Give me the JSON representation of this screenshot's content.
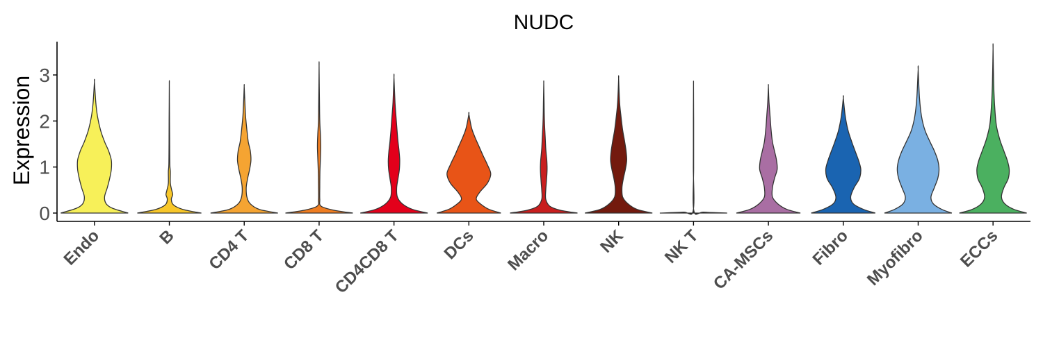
{
  "chart_data": {
    "type": "violin",
    "title": "NUDC",
    "xlabel": "",
    "ylabel": "Expression",
    "ylim": [
      -0.2,
      3.6
    ],
    "yticks": [
      0,
      1,
      2,
      3
    ],
    "grid": false,
    "legend": "none",
    "categories": [
      "Endo",
      "B",
      "CD4 T",
      "CD8 T",
      "CD4CD8 T",
      "DCs",
      "Macro",
      "NK",
      "NK T",
      "CA-MSCs",
      "Fibro",
      "Myofibro",
      "ECCs"
    ],
    "series": [
      {
        "color": "#f7f059",
        "max": 2.85,
        "width": [
          [
            0,
            1.0
          ],
          [
            0.1,
            0.55
          ],
          [
            0.2,
            0.35
          ],
          [
            0.35,
            0.3
          ],
          [
            0.55,
            0.38
          ],
          [
            0.75,
            0.45
          ],
          [
            0.95,
            0.5
          ],
          [
            1.15,
            0.5
          ],
          [
            1.35,
            0.42
          ],
          [
            1.55,
            0.3
          ],
          [
            1.8,
            0.18
          ],
          [
            2.1,
            0.09
          ],
          [
            2.4,
            0.04
          ],
          [
            2.85,
            0.0
          ]
        ]
      },
      {
        "color": "#f8c72a",
        "max": 2.78,
        "width": [
          [
            0,
            0.95
          ],
          [
            0.08,
            0.4
          ],
          [
            0.18,
            0.12
          ],
          [
            0.3,
            0.06
          ],
          [
            0.4,
            0.1
          ],
          [
            0.5,
            0.07
          ],
          [
            0.65,
            0.03
          ],
          [
            0.9,
            0.03
          ],
          [
            1.05,
            0.015
          ],
          [
            1.5,
            0.01
          ],
          [
            2.0,
            0.006
          ],
          [
            2.78,
            0.0
          ]
        ]
      },
      {
        "color": "#f5a432",
        "max": 2.75,
        "width": [
          [
            0,
            1.0
          ],
          [
            0.08,
            0.45
          ],
          [
            0.2,
            0.18
          ],
          [
            0.35,
            0.08
          ],
          [
            0.55,
            0.06
          ],
          [
            0.75,
            0.1
          ],
          [
            0.95,
            0.16
          ],
          [
            1.15,
            0.2
          ],
          [
            1.35,
            0.18
          ],
          [
            1.55,
            0.12
          ],
          [
            1.8,
            0.08
          ],
          [
            2.1,
            0.04
          ],
          [
            2.4,
            0.02
          ],
          [
            2.75,
            0.0
          ]
        ]
      },
      {
        "color": "#ef7d21",
        "max": 3.2,
        "width": [
          [
            0,
            1.0
          ],
          [
            0.06,
            0.45
          ],
          [
            0.15,
            0.06
          ],
          [
            0.3,
            0.02
          ],
          [
            0.6,
            0.02
          ],
          [
            0.9,
            0.025
          ],
          [
            1.2,
            0.04
          ],
          [
            1.45,
            0.05
          ],
          [
            1.7,
            0.04
          ],
          [
            2.0,
            0.02
          ],
          [
            2.5,
            0.01
          ],
          [
            3.2,
            0.0
          ]
        ]
      },
      {
        "color": "#e3001b",
        "max": 2.95,
        "width": [
          [
            0,
            1.0
          ],
          [
            0.08,
            0.55
          ],
          [
            0.2,
            0.25
          ],
          [
            0.35,
            0.1
          ],
          [
            0.55,
            0.08
          ],
          [
            0.75,
            0.12
          ],
          [
            0.95,
            0.16
          ],
          [
            1.15,
            0.17
          ],
          [
            1.35,
            0.15
          ],
          [
            1.55,
            0.12
          ],
          [
            1.8,
            0.09
          ],
          [
            2.1,
            0.06
          ],
          [
            2.4,
            0.03
          ],
          [
            2.95,
            0.0
          ]
        ]
      },
      {
        "color": "#e85417",
        "max": 2.15,
        "width": [
          [
            0,
            0.95
          ],
          [
            0.08,
            0.6
          ],
          [
            0.18,
            0.38
          ],
          [
            0.3,
            0.22
          ],
          [
            0.45,
            0.32
          ],
          [
            0.65,
            0.55
          ],
          [
            0.85,
            0.65
          ],
          [
            1.05,
            0.55
          ],
          [
            1.25,
            0.42
          ],
          [
            1.45,
            0.3
          ],
          [
            1.65,
            0.18
          ],
          [
            1.85,
            0.08
          ],
          [
            2.15,
            0.0
          ]
        ]
      },
      {
        "color": "#c81e1e",
        "max": 2.82,
        "width": [
          [
            0,
            1.0
          ],
          [
            0.06,
            0.5
          ],
          [
            0.15,
            0.18
          ],
          [
            0.3,
            0.06
          ],
          [
            0.5,
            0.06
          ],
          [
            0.7,
            0.08
          ],
          [
            0.95,
            0.1
          ],
          [
            1.15,
            0.09
          ],
          [
            1.4,
            0.06
          ],
          [
            1.7,
            0.04
          ],
          [
            2.0,
            0.02
          ],
          [
            2.4,
            0.01
          ],
          [
            2.82,
            0.0
          ]
        ]
      },
      {
        "color": "#731a0e",
        "max": 2.92,
        "width": [
          [
            0,
            1.0
          ],
          [
            0.08,
            0.55
          ],
          [
            0.2,
            0.28
          ],
          [
            0.35,
            0.12
          ],
          [
            0.55,
            0.1
          ],
          [
            0.75,
            0.14
          ],
          [
            0.95,
            0.2
          ],
          [
            1.15,
            0.24
          ],
          [
            1.35,
            0.22
          ],
          [
            1.55,
            0.18
          ],
          [
            1.8,
            0.12
          ],
          [
            2.1,
            0.07
          ],
          [
            2.4,
            0.03
          ],
          [
            2.92,
            0.0
          ]
        ]
      },
      {
        "color": "#1a1a1a",
        "max": 2.77,
        "width": [
          [
            0,
            1.0
          ],
          [
            0.02,
            0.3
          ],
          [
            0.05,
            0.01
          ],
          [
            1.0,
            0.005
          ],
          [
            2.0,
            0.004
          ],
          [
            2.77,
            0.0
          ]
        ]
      },
      {
        "color": "#a96ea3",
        "max": 2.75,
        "width": [
          [
            0,
            0.95
          ],
          [
            0.08,
            0.55
          ],
          [
            0.2,
            0.28
          ],
          [
            0.35,
            0.12
          ],
          [
            0.55,
            0.12
          ],
          [
            0.75,
            0.18
          ],
          [
            0.95,
            0.26
          ],
          [
            1.15,
            0.24
          ],
          [
            1.35,
            0.18
          ],
          [
            1.55,
            0.12
          ],
          [
            1.8,
            0.08
          ],
          [
            2.1,
            0.05
          ],
          [
            2.4,
            0.02
          ],
          [
            2.75,
            0.0
          ]
        ]
      },
      {
        "color": "#1a64b1",
        "max": 2.5,
        "width": [
          [
            0,
            0.95
          ],
          [
            0.08,
            0.6
          ],
          [
            0.2,
            0.3
          ],
          [
            0.35,
            0.22
          ],
          [
            0.55,
            0.32
          ],
          [
            0.75,
            0.48
          ],
          [
            0.95,
            0.52
          ],
          [
            1.15,
            0.45
          ],
          [
            1.35,
            0.35
          ],
          [
            1.55,
            0.25
          ],
          [
            1.8,
            0.14
          ],
          [
            2.1,
            0.06
          ],
          [
            2.5,
            0.0
          ]
        ]
      },
      {
        "color": "#7ab0e2",
        "max": 3.12,
        "width": [
          [
            0,
            1.0
          ],
          [
            0.08,
            0.7
          ],
          [
            0.2,
            0.45
          ],
          [
            0.35,
            0.38
          ],
          [
            0.55,
            0.48
          ],
          [
            0.75,
            0.58
          ],
          [
            0.95,
            0.62
          ],
          [
            1.15,
            0.58
          ],
          [
            1.35,
            0.48
          ],
          [
            1.55,
            0.35
          ],
          [
            1.8,
            0.2
          ],
          [
            2.1,
            0.1
          ],
          [
            2.5,
            0.04
          ],
          [
            3.12,
            0.0
          ]
        ]
      },
      {
        "color": "#4bb060",
        "max": 3.58,
        "width": [
          [
            0,
            1.0
          ],
          [
            0.08,
            0.62
          ],
          [
            0.2,
            0.35
          ],
          [
            0.35,
            0.25
          ],
          [
            0.55,
            0.32
          ],
          [
            0.75,
            0.45
          ],
          [
            0.95,
            0.48
          ],
          [
            1.15,
            0.42
          ],
          [
            1.35,
            0.32
          ],
          [
            1.6,
            0.2
          ],
          [
            1.9,
            0.1
          ],
          [
            2.3,
            0.05
          ],
          [
            2.8,
            0.02
          ],
          [
            3.58,
            0.0
          ]
        ]
      }
    ]
  }
}
